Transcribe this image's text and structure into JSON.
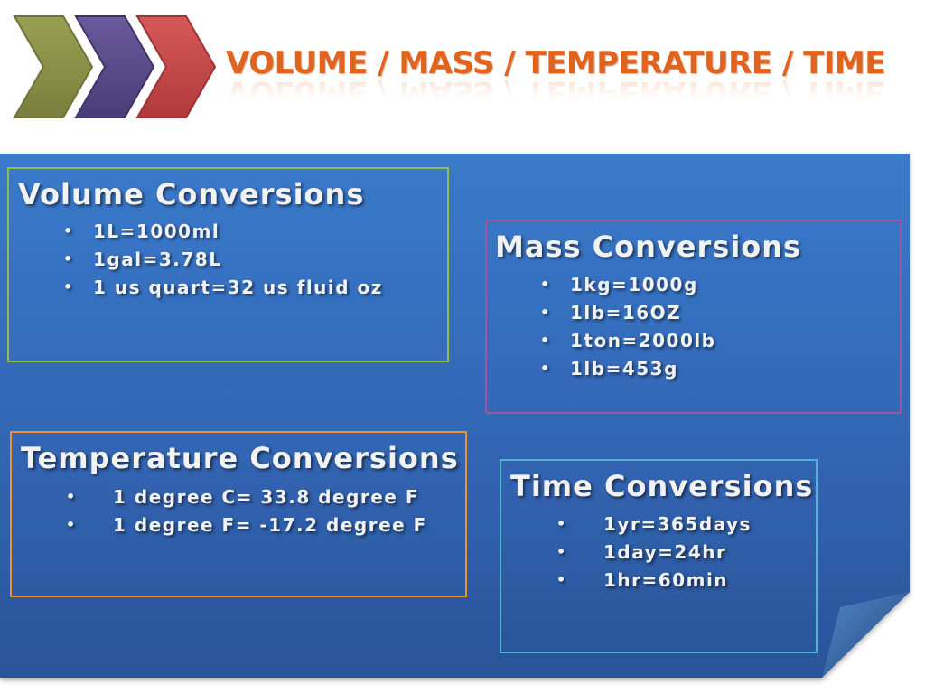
{
  "slide": {
    "title": "VOLUME / MASS / TEMPERATURE / TIME",
    "colors": {
      "title": "#e0641e",
      "panel_top": "#3a78c6",
      "panel_bottom": "#2b57a0",
      "chevron_1": "#8a8e4a",
      "chevron_2": "#5a4a8a",
      "chevron_3": "#c4484a"
    }
  },
  "sections": {
    "volume": {
      "heading": "Volume Conversions",
      "border_color": "#8fbd4e",
      "items": [
        "1L=1000ml",
        "1gal=3.78L",
        "1 us quart=32 us fluid oz"
      ]
    },
    "mass": {
      "heading": "Mass Conversions",
      "border_color": "#9a5a9e",
      "items": [
        "1kg=1000g",
        "1lb=16OZ",
        "1ton=2000lb",
        "1lb=453g"
      ]
    },
    "temperature": {
      "heading": "Temperature Conversions",
      "border_color": "#f0913a",
      "items": [
        "1 degree C= 33.8 degree F",
        "1 degree F= -17.2 degree F"
      ]
    },
    "time": {
      "heading": "Time Conversions",
      "border_color": "#4fb7cf",
      "items": [
        "1yr=365days",
        "1day=24hr",
        "1hr=60min"
      ]
    }
  },
  "bullet": "•"
}
